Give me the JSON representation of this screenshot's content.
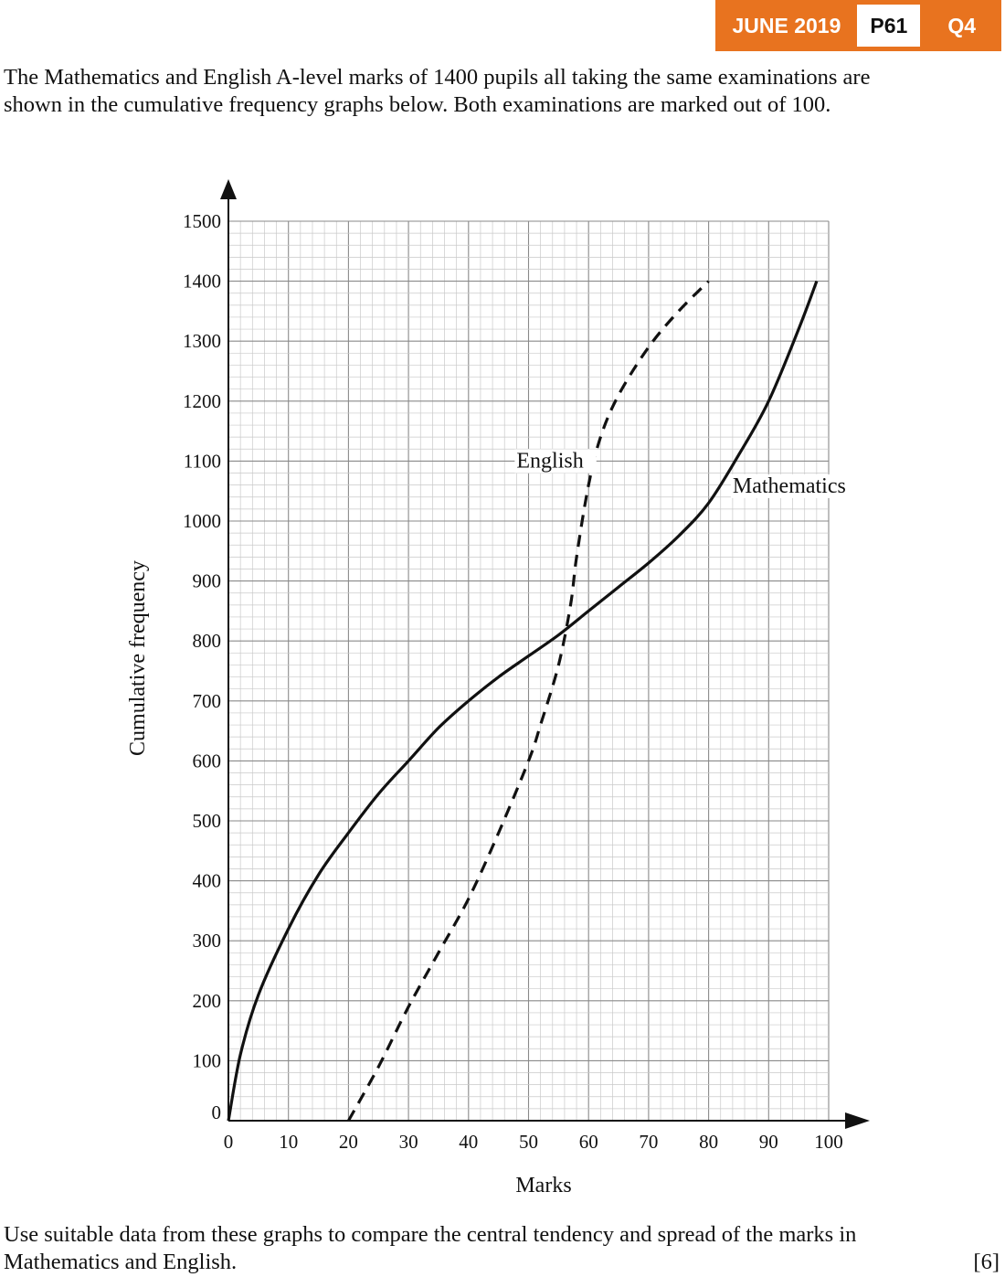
{
  "header": {
    "session": "JUNE 2019",
    "paper": "P61",
    "question": "Q4",
    "colors": {
      "badge_bg": "#e8731f",
      "badge_text": "#ffffff"
    }
  },
  "question": {
    "intro_line1": "The Mathematics and English A-level marks of 1400 pupils all taking the same examinations are",
    "intro_line2": "shown in the cumulative frequency graphs below.  Both examinations are marked out of 100.",
    "task_line1": "Use suitable data from these graphs to compare the central tendency and spread of the marks in",
    "task_line2": "Mathematics and English.",
    "marks": "[6]"
  },
  "chart_data": {
    "type": "line",
    "xlabel": "Marks",
    "ylabel": "Cumulative frequency",
    "xlim": [
      0,
      100
    ],
    "ylim": [
      0,
      1500
    ],
    "xticks": [
      0,
      10,
      20,
      30,
      40,
      50,
      60,
      70,
      80,
      90,
      100
    ],
    "yticks": [
      0,
      100,
      200,
      300,
      400,
      500,
      600,
      700,
      800,
      900,
      1000,
      1100,
      1200,
      1300,
      1400,
      1500
    ],
    "grid": true,
    "series": [
      {
        "name": "Mathematics",
        "style": "solid",
        "x": [
          0,
          2,
          5,
          10,
          15,
          20,
          25,
          30,
          35,
          40,
          45,
          50,
          55,
          60,
          65,
          70,
          75,
          80,
          85,
          90,
          95,
          98
        ],
        "y": [
          0,
          110,
          210,
          320,
          410,
          480,
          545,
          600,
          655,
          700,
          740,
          775,
          810,
          850,
          890,
          930,
          975,
          1030,
          1110,
          1200,
          1320,
          1400
        ]
      },
      {
        "name": "English",
        "style": "dashed",
        "x": [
          20,
          25,
          30,
          35,
          40,
          45,
          50,
          52,
          55,
          57,
          58,
          60,
          62,
          65,
          70,
          75,
          80
        ],
        "y": [
          0,
          90,
          190,
          280,
          370,
          480,
          600,
          660,
          760,
          860,
          940,
          1060,
          1140,
          1210,
          1290,
          1350,
          1400
        ]
      }
    ]
  }
}
